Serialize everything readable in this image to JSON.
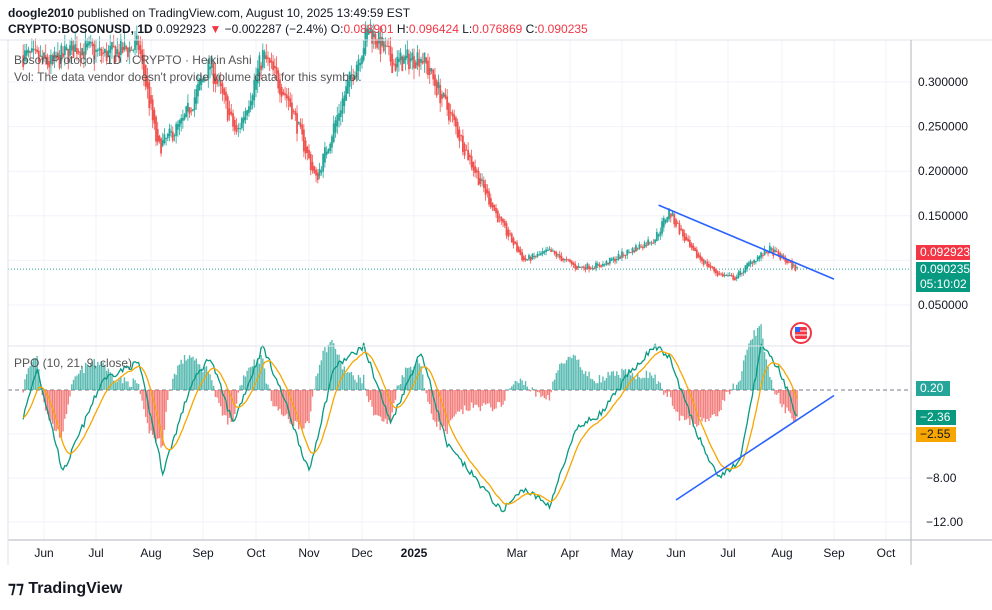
{
  "header": {
    "publisher": "doogle2010",
    "published_text": "published on TradingView.com, August 10, 2025 13:49:59 EST",
    "symbol": "CRYPTO:BOSONUSD, 1D",
    "last": "0.092923",
    "change": "−0.002287 (−2.4%)",
    "o_label": "O:",
    "o": "0.088901",
    "h_label": "H:",
    "h": "0.096424",
    "l_label": "L:",
    "l": "0.076869",
    "c_label": "C:",
    "c": "0.090235"
  },
  "legend": {
    "title": "Boson Protocol · 1D · CRYPTO · Heikin Ashi",
    "vol": "Vol: The data vendor doesn't provide volume data for this symbol.",
    "ppo": "PPO (10, 21, 9, close)"
  },
  "price_tags": {
    "last": "0.092923",
    "close": "0.090235",
    "countdown": "05:10:02",
    "ppo_hist": "0.20",
    "ppo_line": "−2.36",
    "ppo_signal": "−2.55"
  },
  "footer": {
    "brand": "TradingView"
  },
  "colors": {
    "up": "#26a69a",
    "down": "#ef5350",
    "trend": "#2962ff",
    "ppo": "#089981",
    "signal": "#f7a600",
    "tag_red": "#f23645",
    "tag_green": "#089981",
    "tag_orange": "#f7a600"
  },
  "chart_data": {
    "type": "candlestick",
    "title": "Boson Protocol · 1D · CRYPTO · Heikin Ashi",
    "x_ticks": [
      "Jun",
      "Jul",
      "Aug",
      "Sep",
      "Oct",
      "Nov",
      "Dec",
      "2025",
      "Mar",
      "Apr",
      "May",
      "Jun",
      "Jul",
      "Aug",
      "Sep",
      "Oct"
    ],
    "y_ticks": [
      "0.300000",
      "0.250000",
      "0.200000",
      "0.150000",
      "0.050000"
    ],
    "ylim": [
      0.02,
      0.36
    ],
    "price_anchors": [
      {
        "x": "2024-05-20",
        "y": 0.33
      },
      {
        "x": "2024-06-05",
        "y": 0.32
      },
      {
        "x": "2024-06-20",
        "y": 0.34
      },
      {
        "x": "2024-07-05",
        "y": 0.33
      },
      {
        "x": "2024-07-25",
        "y": 0.34
      },
      {
        "x": "2024-08-05",
        "y": 0.225
      },
      {
        "x": "2024-08-20",
        "y": 0.255
      },
      {
        "x": "2024-09-05",
        "y": 0.32
      },
      {
        "x": "2024-09-20",
        "y": 0.24
      },
      {
        "x": "2024-10-05",
        "y": 0.33
      },
      {
        "x": "2024-10-20",
        "y": 0.28
      },
      {
        "x": "2024-11-05",
        "y": 0.19
      },
      {
        "x": "2024-11-20",
        "y": 0.28
      },
      {
        "x": "2024-12-05",
        "y": 0.36
      },
      {
        "x": "2024-12-20",
        "y": 0.32
      },
      {
        "x": "2025-01-05",
        "y": 0.33
      },
      {
        "x": "2025-01-20",
        "y": 0.27
      },
      {
        "x": "2025-02-05",
        "y": 0.2
      },
      {
        "x": "2025-02-20",
        "y": 0.14
      },
      {
        "x": "2025-03-05",
        "y": 0.1
      },
      {
        "x": "2025-03-20",
        "y": 0.11
      },
      {
        "x": "2025-04-05",
        "y": 0.092
      },
      {
        "x": "2025-04-20",
        "y": 0.095
      },
      {
        "x": "2025-05-05",
        "y": 0.11
      },
      {
        "x": "2025-05-20",
        "y": 0.125
      },
      {
        "x": "2025-05-28",
        "y": 0.155
      },
      {
        "x": "2025-06-10",
        "y": 0.11
      },
      {
        "x": "2025-06-25",
        "y": 0.085
      },
      {
        "x": "2025-07-05",
        "y": 0.08
      },
      {
        "x": "2025-07-15",
        "y": 0.1
      },
      {
        "x": "2025-07-25",
        "y": 0.112
      },
      {
        "x": "2025-08-10",
        "y": 0.09
      }
    ],
    "trendline_price": [
      {
        "x": "2025-05-22",
        "y": 0.162
      },
      {
        "x": "2025-09-01",
        "y": 0.079
      }
    ],
    "ppo_ylim": [
      -14,
      4.5
    ],
    "ppo_ticks": [
      "−8.00",
      "−12.00"
    ],
    "ppo_anchors": [
      {
        "x": "2024-05-20",
        "y": -2.5
      },
      {
        "x": "2024-05-28",
        "y": 2
      },
      {
        "x": "2024-06-12",
        "y": -7.5
      },
      {
        "x": "2024-07-05",
        "y": 1
      },
      {
        "x": "2024-07-25",
        "y": 2.5
      },
      {
        "x": "2024-08-08",
        "y": -7.5
      },
      {
        "x": "2024-08-25",
        "y": 0.5
      },
      {
        "x": "2024-09-05",
        "y": 3
      },
      {
        "x": "2024-09-18",
        "y": -3
      },
      {
        "x": "2024-10-05",
        "y": 4
      },
      {
        "x": "2024-10-18",
        "y": -1
      },
      {
        "x": "2024-11-01",
        "y": -7.5
      },
      {
        "x": "2024-11-15",
        "y": 2
      },
      {
        "x": "2024-12-02",
        "y": 4
      },
      {
        "x": "2024-12-18",
        "y": -3
      },
      {
        "x": "2025-01-05",
        "y": 3.5
      },
      {
        "x": "2025-01-20",
        "y": -5
      },
      {
        "x": "2025-02-05",
        "y": -8
      },
      {
        "x": "2025-02-20",
        "y": -11
      },
      {
        "x": "2025-03-05",
        "y": -9
      },
      {
        "x": "2025-03-20",
        "y": -10.5
      },
      {
        "x": "2025-04-05",
        "y": -3.5
      },
      {
        "x": "2025-04-20",
        "y": -2
      },
      {
        "x": "2025-05-05",
        "y": 1.5
      },
      {
        "x": "2025-05-20",
        "y": 4
      },
      {
        "x": "2025-05-28",
        "y": 3
      },
      {
        "x": "2025-06-12",
        "y": -3.5
      },
      {
        "x": "2025-06-25",
        "y": -8
      },
      {
        "x": "2025-07-08",
        "y": -6.5
      },
      {
        "x": "2025-07-20",
        "y": 4
      },
      {
        "x": "2025-07-30",
        "y": 2
      },
      {
        "x": "2025-08-10",
        "y": -2.36
      }
    ],
    "trendline_ppo": [
      {
        "x": "2025-06-01",
        "y": -10
      },
      {
        "x": "2025-09-01",
        "y": -0.5
      }
    ]
  }
}
